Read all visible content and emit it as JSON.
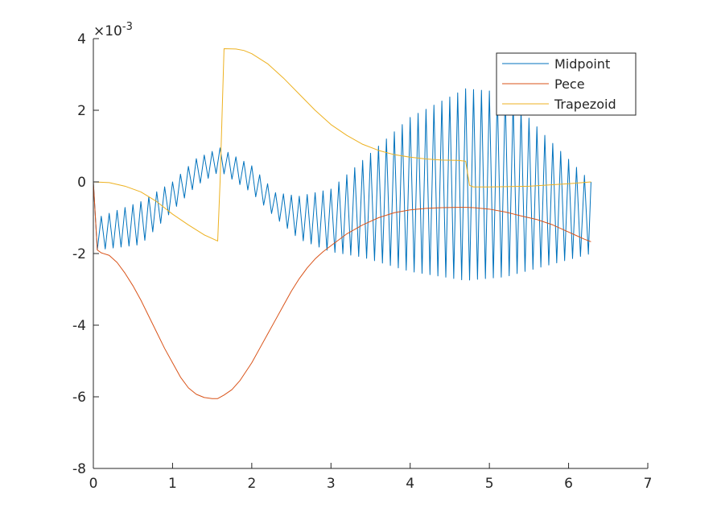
{
  "chart_data": {
    "type": "line",
    "title": "",
    "xlabel": "",
    "ylabel": "",
    "xlim": [
      0,
      7
    ],
    "ylim": [
      -8,
      4
    ],
    "y_exponent_label": "×10",
    "y_exponent_power": "-3",
    "grid": false,
    "legend_position": "top-right",
    "x_ticks": [
      "0",
      "1",
      "2",
      "3",
      "4",
      "5",
      "6",
      "7"
    ],
    "y_ticks": [
      "-8",
      "-6",
      "-4",
      "-2",
      "0",
      "2",
      "4"
    ],
    "x_tick_values": [
      0,
      1,
      2,
      3,
      4,
      5,
      6,
      7
    ],
    "y_tick_values": [
      -8,
      -6,
      -4,
      -2,
      0,
      2,
      4
    ],
    "series": [
      {
        "name": "Midpoint",
        "color": "#0072BD",
        "style": "oscillating-envelope",
        "x_range": [
          0,
          6.283
        ],
        "oscillation_period": 0.1,
        "initial_point": [
          0,
          0
        ],
        "envelope": [
          {
            "x": 0.05,
            "lo": -1.9,
            "hi": -1.0
          },
          {
            "x": 0.6,
            "lo": -1.75,
            "hi": -0.55
          },
          {
            "x": 1.0,
            "lo": -0.8,
            "hi": 0.0
          },
          {
            "x": 1.3,
            "lo": -0.1,
            "hi": 0.65
          },
          {
            "x": 1.6,
            "lo": 0.3,
            "hi": 0.95
          },
          {
            "x": 2.0,
            "lo": -0.3,
            "hi": 0.45
          },
          {
            "x": 2.3,
            "lo": -1.0,
            "hi": -0.3
          },
          {
            "x": 2.6,
            "lo": -1.6,
            "hi": -0.4
          },
          {
            "x": 3.0,
            "lo": -1.95,
            "hi": -0.2
          },
          {
            "x": 3.4,
            "lo": -2.1,
            "hi": 0.6
          },
          {
            "x": 4.0,
            "lo": -2.5,
            "hi": 1.8
          },
          {
            "x": 4.7,
            "lo": -2.75,
            "hi": 2.6
          },
          {
            "x": 5.2,
            "lo": -2.65,
            "hi": 2.5
          },
          {
            "x": 5.7,
            "lo": -2.35,
            "hi": 1.3
          },
          {
            "x": 6.283,
            "lo": -2.0,
            "hi": 0.0
          }
        ]
      },
      {
        "name": "Pece",
        "color": "#D95319",
        "style": "line",
        "x": [
          0,
          0.05,
          0.1,
          0.2,
          0.3,
          0.4,
          0.5,
          0.6,
          0.7,
          0.8,
          0.9,
          1.0,
          1.1,
          1.2,
          1.3,
          1.4,
          1.5,
          1.57,
          1.65,
          1.75,
          1.85,
          2.0,
          2.1,
          2.2,
          2.3,
          2.4,
          2.5,
          2.6,
          2.7,
          2.8,
          2.9,
          3.0,
          3.2,
          3.4,
          3.6,
          3.8,
          4.0,
          4.2,
          4.4,
          4.6,
          4.71,
          4.8,
          5.0,
          5.2,
          5.4,
          5.6,
          5.8,
          6.0,
          6.1,
          6.2,
          6.283
        ],
        "y": [
          0,
          -1.9,
          -1.98,
          -2.05,
          -2.25,
          -2.55,
          -2.9,
          -3.3,
          -3.75,
          -4.2,
          -4.65,
          -5.05,
          -5.45,
          -5.75,
          -5.93,
          -6.02,
          -6.05,
          -6.05,
          -5.95,
          -5.8,
          -5.55,
          -5.05,
          -4.65,
          -4.25,
          -3.85,
          -3.45,
          -3.05,
          -2.7,
          -2.4,
          -2.15,
          -1.95,
          -1.78,
          -1.45,
          -1.2,
          -1.0,
          -0.86,
          -0.78,
          -0.74,
          -0.72,
          -0.71,
          -0.71,
          -0.72,
          -0.76,
          -0.84,
          -0.95,
          -1.05,
          -1.2,
          -1.4,
          -1.5,
          -1.6,
          -1.67
        ]
      },
      {
        "name": "Trapezoid",
        "color": "#EDB120",
        "style": "line",
        "x": [
          0,
          0.2,
          0.4,
          0.6,
          0.8,
          1.0,
          1.2,
          1.4,
          1.57,
          1.6,
          1.65,
          1.8,
          1.9,
          2.0,
          2.2,
          2.4,
          2.6,
          2.8,
          3.0,
          3.2,
          3.4,
          3.6,
          3.8,
          4.0,
          4.2,
          4.4,
          4.6,
          4.7,
          4.75,
          4.8,
          5.0,
          5.5,
          6.0,
          6.283
        ],
        "y": [
          0,
          -0.02,
          -0.12,
          -0.28,
          -0.55,
          -0.9,
          -1.2,
          -1.48,
          -1.65,
          0.0,
          3.72,
          3.71,
          3.67,
          3.58,
          3.3,
          2.9,
          2.45,
          2.0,
          1.6,
          1.3,
          1.05,
          0.88,
          0.76,
          0.69,
          0.64,
          0.61,
          0.6,
          0.58,
          -0.1,
          -0.14,
          -0.14,
          -0.12,
          -0.05,
          0.0
        ]
      }
    ]
  }
}
